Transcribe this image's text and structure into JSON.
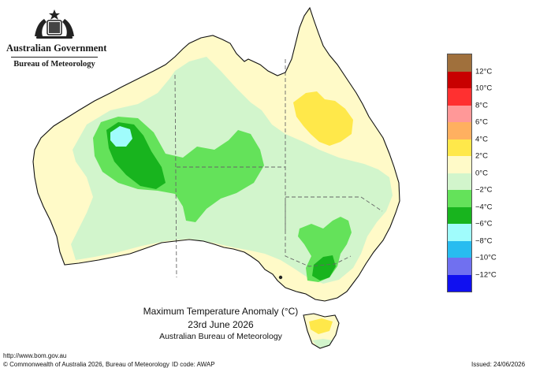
{
  "header": {
    "org_name": "Australian Government",
    "agency": "Bureau of Meteorology"
  },
  "title": {
    "line1": "Maximum Temperature Anomaly (°C)",
    "line2": "23rd June 2026",
    "line3": "Australian Bureau of Meteorology"
  },
  "legend": {
    "colors": [
      "#a0703c",
      "#c80000",
      "#ff3030",
      "#ff9898",
      "#ffb060",
      "#ffe84a",
      "#fffac8",
      "#d2f5cc",
      "#64e25a",
      "#18b41e",
      "#a0fcfc",
      "#28bcf0",
      "#7070f0",
      "#1010f0"
    ],
    "labels": [
      "12°C",
      "10°C",
      "8°C",
      "6°C",
      "4°C",
      "2°C",
      "0°C",
      "−2°C",
      "−4°C",
      "−6°C",
      "−8°C",
      "−10°C",
      "−12°C"
    ]
  },
  "footer": {
    "url": "http://www.bom.gov.au",
    "copyright": "© Commonwealth of Australia 2026, Bureau of Meteorology",
    "id_code": "ID code: AWAP",
    "issued": "Issued: 24/06/2026"
  },
  "map_layers": {
    "background": "#fffac8",
    "regions": [
      {
        "name": "cool-zone-west-central",
        "band": "0 to −2",
        "color": "#d2f5cc"
      },
      {
        "name": "cold-zone-pilbara",
        "band": "−2 to −4",
        "color": "#64e25a"
      },
      {
        "name": "cold-core-pilbara",
        "band": "−4 to −6",
        "color": "#18b41e"
      },
      {
        "name": "coldest-spot-pilbara",
        "band": "−6 to −8",
        "color": "#a0fcfc"
      },
      {
        "name": "cold-zone-nsw",
        "band": "−2 to −4",
        "color": "#64e25a"
      },
      {
        "name": "cold-core-victoria",
        "band": "−4 to −6",
        "color": "#18b41e"
      },
      {
        "name": "warm-zone-queensland",
        "band": "2 to 4",
        "color": "#ffe84a"
      },
      {
        "name": "warm-zone-tasmania",
        "band": "2 to 4",
        "color": "#ffe84a"
      }
    ]
  }
}
